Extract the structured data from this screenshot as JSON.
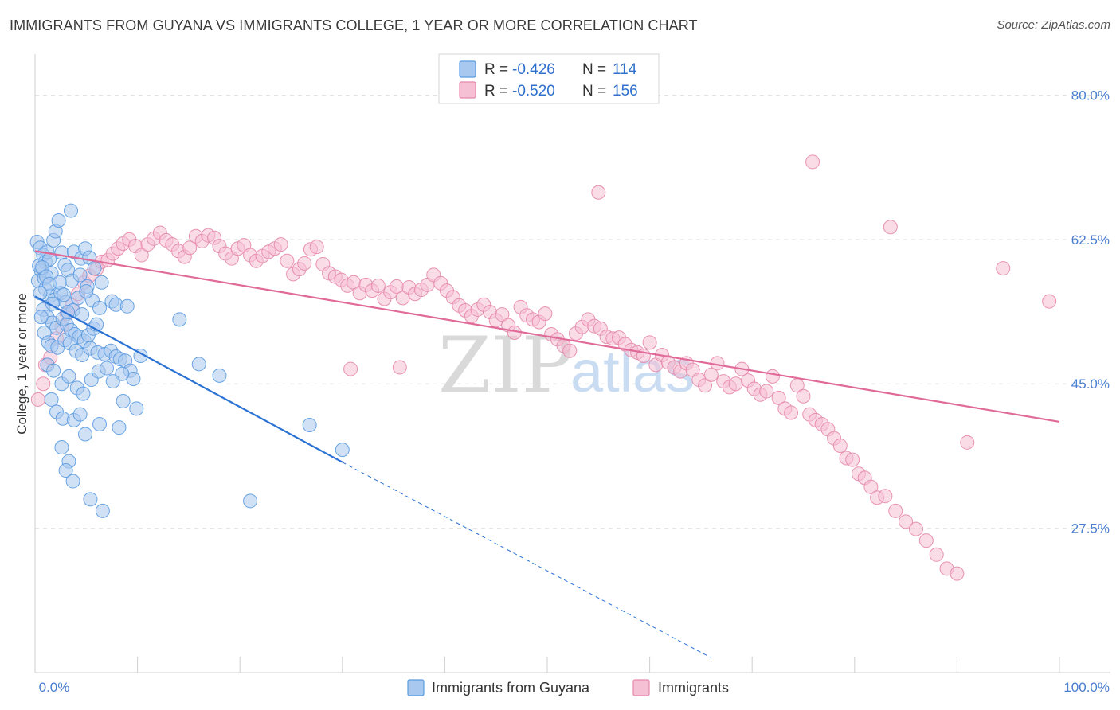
{
  "title": "IMMIGRANTS FROM GUYANA VS IMMIGRANTS COLLEGE, 1 YEAR OR MORE CORRELATION CHART",
  "source": "Source: ZipAtlas.com",
  "watermark": {
    "zip": "ZIP",
    "atlas": "atlas"
  },
  "colors": {
    "blue": "#5b9be0",
    "blue_fill": "#a9c8ef",
    "blue_line": "#2a72d4",
    "pink": "#e688aa",
    "pink_fill": "#f5c0d3",
    "pink_line": "#e06a98",
    "tick_text": "#4a7fd0",
    "grid": "#e2e2e2"
  },
  "legend": {
    "r_label": "R =",
    "n_label": "N =",
    "rows": [
      {
        "r": "-0.426",
        "n": "114"
      },
      {
        "r": "-0.520",
        "n": "156"
      }
    ]
  },
  "chart_data": {
    "type": "scatter",
    "title": "IMMIGRANTS FROM GUYANA VS IMMIGRANTS COLLEGE, 1 YEAR OR MORE CORRELATION CHART",
    "xlabel": "",
    "ylabel": "College, 1 year or more",
    "xlim": [
      0,
      100
    ],
    "ylim": [
      10,
      84
    ],
    "x_tick_labels": [
      "0.0%",
      "100.0%"
    ],
    "y_ticks": [
      27.5,
      45.0,
      62.5,
      80.0
    ],
    "y_tick_labels": [
      "27.5%",
      "45.0%",
      "62.5%",
      "80.0%"
    ],
    "grid": true,
    "legend_position": "top-center",
    "series": [
      {
        "name": "Immigrants from Guyana",
        "r": -0.426,
        "n": 114,
        "trend": {
          "x": [
            0,
            30
          ],
          "y": [
            55.6,
            35.5
          ],
          "dashed_to": [
            66,
            11.8
          ]
        },
        "points": [
          [
            0.2,
            62.2
          ],
          [
            0.5,
            61.5
          ],
          [
            0.8,
            60.6
          ],
          [
            1.0,
            59.8
          ],
          [
            1.2,
            61.0
          ],
          [
            1.4,
            60.1
          ],
          [
            0.6,
            58.7
          ],
          [
            0.3,
            57.5
          ],
          [
            0.9,
            57.8
          ],
          [
            1.6,
            58.4
          ],
          [
            1.8,
            62.4
          ],
          [
            2.0,
            63.5
          ],
          [
            2.3,
            64.8
          ],
          [
            3.5,
            66.0
          ],
          [
            2.6,
            60.9
          ],
          [
            2.9,
            59.4
          ],
          [
            3.2,
            58.8
          ],
          [
            3.8,
            61.0
          ],
          [
            4.5,
            60.2
          ],
          [
            4.9,
            61.4
          ],
          [
            5.3,
            60.3
          ],
          [
            5.8,
            59.0
          ],
          [
            1.0,
            56.5
          ],
          [
            1.5,
            55.7
          ],
          [
            1.9,
            55.2
          ],
          [
            2.5,
            56.0
          ],
          [
            3.0,
            54.9
          ],
          [
            3.7,
            53.9
          ],
          [
            4.2,
            55.4
          ],
          [
            5.1,
            56.8
          ],
          [
            5.6,
            55.1
          ],
          [
            6.3,
            54.2
          ],
          [
            7.5,
            55.0
          ],
          [
            7.9,
            54.6
          ],
          [
            9.0,
            54.4
          ],
          [
            0.8,
            54.0
          ],
          [
            1.2,
            53.1
          ],
          [
            1.7,
            52.4
          ],
          [
            2.1,
            51.8
          ],
          [
            2.7,
            52.9
          ],
          [
            3.1,
            52.2
          ],
          [
            3.5,
            51.5
          ],
          [
            3.9,
            51.0
          ],
          [
            4.3,
            50.7
          ],
          [
            4.8,
            50.2
          ],
          [
            5.2,
            50.9
          ],
          [
            5.7,
            51.7
          ],
          [
            6.0,
            52.2
          ],
          [
            0.9,
            51.2
          ],
          [
            1.3,
            50.0
          ],
          [
            1.6,
            49.6
          ],
          [
            2.2,
            49.4
          ],
          [
            2.9,
            50.3
          ],
          [
            3.4,
            49.9
          ],
          [
            4.0,
            49.0
          ],
          [
            4.6,
            48.5
          ],
          [
            5.4,
            49.3
          ],
          [
            6.1,
            48.8
          ],
          [
            6.8,
            48.6
          ],
          [
            7.4,
            49.0
          ],
          [
            7.9,
            48.3
          ],
          [
            8.3,
            48.0
          ],
          [
            8.8,
            47.8
          ],
          [
            9.3,
            46.6
          ],
          [
            9.6,
            45.6
          ],
          [
            8.5,
            46.2
          ],
          [
            10.3,
            48.4
          ],
          [
            14.1,
            52.8
          ],
          [
            16.0,
            47.4
          ],
          [
            18.0,
            46.0
          ],
          [
            1.2,
            47.3
          ],
          [
            1.8,
            46.6
          ],
          [
            2.6,
            45.0
          ],
          [
            3.3,
            45.9
          ],
          [
            4.1,
            44.5
          ],
          [
            4.7,
            43.8
          ],
          [
            5.5,
            45.5
          ],
          [
            6.2,
            46.5
          ],
          [
            7.0,
            46.9
          ],
          [
            7.6,
            45.3
          ],
          [
            8.6,
            42.9
          ],
          [
            9.9,
            42.0
          ],
          [
            1.6,
            43.1
          ],
          [
            2.1,
            41.6
          ],
          [
            2.7,
            40.8
          ],
          [
            3.8,
            40.6
          ],
          [
            4.4,
            41.3
          ],
          [
            6.3,
            40.1
          ],
          [
            8.2,
            39.7
          ],
          [
            4.9,
            38.9
          ],
          [
            2.6,
            37.3
          ],
          [
            3.3,
            35.6
          ],
          [
            3.0,
            34.5
          ],
          [
            3.7,
            33.2
          ],
          [
            5.4,
            31.0
          ],
          [
            6.6,
            29.6
          ],
          [
            21.0,
            30.8
          ],
          [
            26.8,
            40.0
          ],
          [
            30.0,
            37.0
          ],
          [
            0.4,
            59.3
          ],
          [
            0.7,
            59.1
          ],
          [
            1.1,
            58.0
          ],
          [
            1.4,
            57.1
          ],
          [
            0.5,
            56.0
          ],
          [
            2.4,
            57.3
          ],
          [
            3.6,
            57.5
          ],
          [
            4.4,
            58.2
          ],
          [
            5.0,
            56.2
          ],
          [
            6.5,
            57.3
          ],
          [
            0.6,
            53.1
          ],
          [
            1.7,
            54.7
          ],
          [
            2.8,
            55.8
          ],
          [
            3.2,
            53.7
          ],
          [
            4.6,
            53.4
          ]
        ]
      },
      {
        "name": "Immigrants",
        "r": -0.52,
        "n": 156,
        "trend": {
          "x": [
            0,
            100
          ],
          "y": [
            61.1,
            40.4
          ]
        },
        "points": [
          [
            0.3,
            43.1
          ],
          [
            0.8,
            45.0
          ],
          [
            1.0,
            47.3
          ],
          [
            1.5,
            48.2
          ],
          [
            2.1,
            50.5
          ],
          [
            2.6,
            51.9
          ],
          [
            3.1,
            53.5
          ],
          [
            3.6,
            54.5
          ],
          [
            4.2,
            55.9
          ],
          [
            4.8,
            57.3
          ],
          [
            5.3,
            58.1
          ],
          [
            6.0,
            58.9
          ],
          [
            6.5,
            59.8
          ],
          [
            7.1,
            60.0
          ],
          [
            7.6,
            60.8
          ],
          [
            8.1,
            61.4
          ],
          [
            8.6,
            62.0
          ],
          [
            9.2,
            62.5
          ],
          [
            9.8,
            61.7
          ],
          [
            10.4,
            60.6
          ],
          [
            11.0,
            61.9
          ],
          [
            11.6,
            62.6
          ],
          [
            12.2,
            63.3
          ],
          [
            12.8,
            62.4
          ],
          [
            13.4,
            61.9
          ],
          [
            14.0,
            61.1
          ],
          [
            14.6,
            60.4
          ],
          [
            15.1,
            61.5
          ],
          [
            15.7,
            62.9
          ],
          [
            16.3,
            62.3
          ],
          [
            16.9,
            63.0
          ],
          [
            17.5,
            62.7
          ],
          [
            18.0,
            61.7
          ],
          [
            18.6,
            60.8
          ],
          [
            19.2,
            60.2
          ],
          [
            19.8,
            61.4
          ],
          [
            20.4,
            61.8
          ],
          [
            21.0,
            60.6
          ],
          [
            21.6,
            59.9
          ],
          [
            22.2,
            60.5
          ],
          [
            22.8,
            61.0
          ],
          [
            23.4,
            61.4
          ],
          [
            24.0,
            61.9
          ],
          [
            24.6,
            59.9
          ],
          [
            25.2,
            58.3
          ],
          [
            25.8,
            58.9
          ],
          [
            26.3,
            59.6
          ],
          [
            26.9,
            61.3
          ],
          [
            27.5,
            61.6
          ],
          [
            28.1,
            59.5
          ],
          [
            28.7,
            58.4
          ],
          [
            29.3,
            58.0
          ],
          [
            29.9,
            57.6
          ],
          [
            30.5,
            56.9
          ],
          [
            31.1,
            57.3
          ],
          [
            31.7,
            56.0
          ],
          [
            32.3,
            57.0
          ],
          [
            32.9,
            56.3
          ],
          [
            33.5,
            56.9
          ],
          [
            34.1,
            55.3
          ],
          [
            34.7,
            56.1
          ],
          [
            35.3,
            56.8
          ],
          [
            35.9,
            55.4
          ],
          [
            36.5,
            56.7
          ],
          [
            37.1,
            55.9
          ],
          [
            37.7,
            56.4
          ],
          [
            38.3,
            57.0
          ],
          [
            38.9,
            58.2
          ],
          [
            39.6,
            57.2
          ],
          [
            40.2,
            56.3
          ],
          [
            40.8,
            55.5
          ],
          [
            41.4,
            54.5
          ],
          [
            42.0,
            53.9
          ],
          [
            42.6,
            53.2
          ],
          [
            43.2,
            54.0
          ],
          [
            43.8,
            54.6
          ],
          [
            44.4,
            53.7
          ],
          [
            45.0,
            52.7
          ],
          [
            45.6,
            53.4
          ],
          [
            46.2,
            52.1
          ],
          [
            46.8,
            51.2
          ],
          [
            47.4,
            54.3
          ],
          [
            48.0,
            53.3
          ],
          [
            48.6,
            52.8
          ],
          [
            49.2,
            52.5
          ],
          [
            49.8,
            53.5
          ],
          [
            50.4,
            51.0
          ],
          [
            51.0,
            50.4
          ],
          [
            51.6,
            49.6
          ],
          [
            52.2,
            49.0
          ],
          [
            52.8,
            51.1
          ],
          [
            53.4,
            51.9
          ],
          [
            54.0,
            52.8
          ],
          [
            54.6,
            52.0
          ],
          [
            55.2,
            51.7
          ],
          [
            55.8,
            50.7
          ],
          [
            56.4,
            50.5
          ],
          [
            57.0,
            50.6
          ],
          [
            57.6,
            49.8
          ],
          [
            58.2,
            49.1
          ],
          [
            58.8,
            48.8
          ],
          [
            59.4,
            48.4
          ],
          [
            60.0,
            50.0
          ],
          [
            60.6,
            47.3
          ],
          [
            61.2,
            48.5
          ],
          [
            61.8,
            47.6
          ],
          [
            62.4,
            47.0
          ],
          [
            63.0,
            46.5
          ],
          [
            63.6,
            47.5
          ],
          [
            64.2,
            46.7
          ],
          [
            64.8,
            45.5
          ],
          [
            65.4,
            44.8
          ],
          [
            66.0,
            46.1
          ],
          [
            66.6,
            47.5
          ],
          [
            67.2,
            45.3
          ],
          [
            67.8,
            44.6
          ],
          [
            68.4,
            45.0
          ],
          [
            69.0,
            46.8
          ],
          [
            69.6,
            45.4
          ],
          [
            70.2,
            44.4
          ],
          [
            70.8,
            43.7
          ],
          [
            71.4,
            44.1
          ],
          [
            72.0,
            45.9
          ],
          [
            72.6,
            43.3
          ],
          [
            73.2,
            42.0
          ],
          [
            73.8,
            41.5
          ],
          [
            74.4,
            44.8
          ],
          [
            75.0,
            43.5
          ],
          [
            75.6,
            41.3
          ],
          [
            76.2,
            40.6
          ],
          [
            76.8,
            40.1
          ],
          [
            77.4,
            39.5
          ],
          [
            78.0,
            38.4
          ],
          [
            78.6,
            37.5
          ],
          [
            79.2,
            36.0
          ],
          [
            79.8,
            35.8
          ],
          [
            80.4,
            34.1
          ],
          [
            81.0,
            33.6
          ],
          [
            81.6,
            32.5
          ],
          [
            82.2,
            31.2
          ],
          [
            83.0,
            31.4
          ],
          [
            84.0,
            29.6
          ],
          [
            85.0,
            28.3
          ],
          [
            86.0,
            27.4
          ],
          [
            87.0,
            26.0
          ],
          [
            88.0,
            24.3
          ],
          [
            89.0,
            22.6
          ],
          [
            90.0,
            22.0
          ],
          [
            83.5,
            64.0
          ],
          [
            94.5,
            59.0
          ],
          [
            55.0,
            68.2
          ],
          [
            75.9,
            71.9
          ],
          [
            91.0,
            37.9
          ],
          [
            99.0,
            55.0
          ],
          [
            35.6,
            47.0
          ],
          [
            30.8,
            46.8
          ]
        ]
      }
    ]
  },
  "bottom_legend": [
    {
      "label": "Immigrants from Guyana"
    },
    {
      "label": "Immigrants"
    }
  ]
}
